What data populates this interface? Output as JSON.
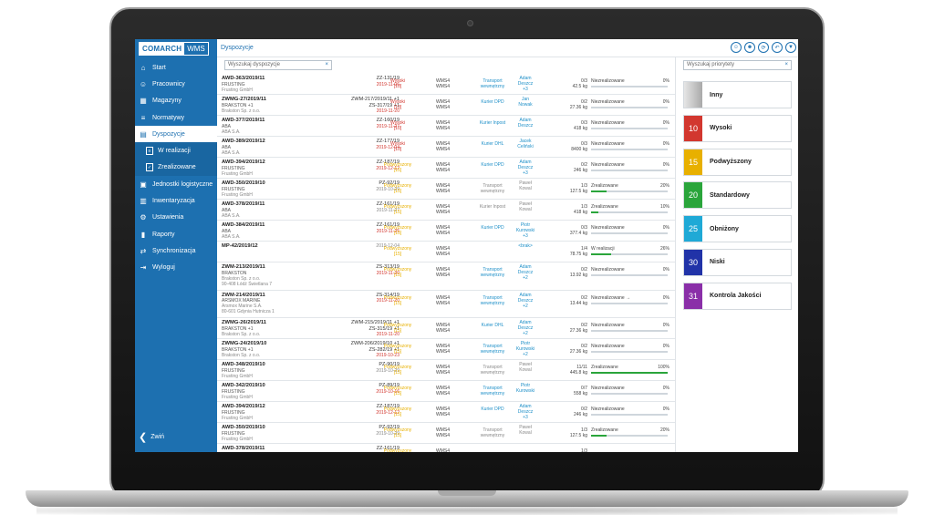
{
  "app": {
    "logo_brand": "COMARCH",
    "logo_product": "WMS",
    "page_title": "Dyspozycje",
    "top_icons": [
      "user-icon",
      "users-icon",
      "refresh-icon",
      "undo-icon",
      "filter-icon"
    ]
  },
  "sidebar": {
    "items": [
      {
        "label": "Start",
        "icon": "home-icon"
      },
      {
        "label": "Pracownicy",
        "icon": "people-icon"
      },
      {
        "label": "Magazyny",
        "icon": "warehouse-icon"
      },
      {
        "label": "Normatywy",
        "icon": "norms-icon"
      },
      {
        "label": "Dyspozycje",
        "icon": "document-icon"
      },
      {
        "label": "W realizacji",
        "icon": "doc-in-progress-icon"
      },
      {
        "label": "Zrealizowane",
        "icon": "doc-done-icon"
      },
      {
        "label": "Jednostki logistyczne",
        "icon": "logistics-icon"
      },
      {
        "label": "Inwentaryzacja",
        "icon": "inventory-icon"
      },
      {
        "label": "Ustawienia",
        "icon": "gear-icon"
      },
      {
        "label": "Raporty",
        "icon": "chart-icon"
      },
      {
        "label": "Synchronizacja",
        "icon": "sync-icon"
      },
      {
        "label": "Wyloguj",
        "icon": "logout-icon"
      }
    ],
    "collapse_label": "Zwiń"
  },
  "search": {
    "placeholder": "Wyszukaj dyspozycje"
  },
  "priority_search": {
    "placeholder": "Wyszukaj priorytety"
  },
  "colors": {
    "accent": "#1d70b0",
    "high": "#d2372f",
    "elevated": "#e8b000",
    "standard": "#2aa53b",
    "low": "#1fa9d6",
    "lowest": "#2133a8",
    "quality": "#8a2fa8",
    "other": "#b9b9b9"
  },
  "rows": [
    {
      "doc": "AWD-363/2019/11",
      "l2": "FRUSTING",
      "l3": "Frusting GmbH",
      "l4": "",
      "src": "ZZ-131/19",
      "src2": "",
      "date": "2019-11-06",
      "date_red": true,
      "prio": "Wysoki",
      "prio_no": "[10]",
      "prio_color": "#d2372f",
      "wh": "WMS4",
      "wh2": "WMS4",
      "car": "Transport",
      "car2": "wewnętrzny",
      "car_grey": false,
      "per": "Adam",
      "per2": "Deszcz",
      "per3": "+3",
      "per_grey": false,
      "qty": "0/3",
      "qty2": "42.5 kg",
      "status": "Niezrealizowane",
      "pct": "0%",
      "fill": 0
    },
    {
      "doc": "ZWMG-27/2019/11",
      "l2": "BRAKSTON +1",
      "l3": "Brakston Sp. z o.o.",
      "l4": "",
      "src": "ZWM-217/2019/11 +1",
      "src2": "ZS-317/19 +1",
      "date": "2019-11-20",
      "date_red": true,
      "prio": "Wysoki",
      "prio_no": "[10]",
      "prio_color": "#d2372f",
      "wh": "WMS4",
      "wh2": "WMS4",
      "car": "Kurier DPD",
      "car2": "",
      "car_grey": false,
      "per": "Jan",
      "per2": "Nowak",
      "per3": "",
      "per_grey": false,
      "qty": "0/2",
      "qty2": "27.36 kg",
      "status": "Niezrealizowane",
      "pct": "0%",
      "fill": 0
    },
    {
      "doc": "AWD-377/2019/11",
      "l2": "ABA",
      "l3": "ABA S.A.",
      "l4": "",
      "src": "ZZ-160/19",
      "src2": "",
      "date": "2019-11-27",
      "date_red": true,
      "prio": "Wysoki",
      "prio_no": "[10]",
      "prio_color": "#d2372f",
      "wh": "WMS4",
      "wh2": "WMS4",
      "car": "Kurier Inpost",
      "car2": "",
      "car_grey": false,
      "per": "Adam",
      "per2": "Deszcz",
      "per3": "",
      "per_grey": false,
      "qty": "0/3",
      "qty2": "418 kg",
      "status": "Niezrealizowane",
      "pct": "0%",
      "fill": 0
    },
    {
      "doc": "AWD-389/2019/12",
      "l2": "ABA",
      "l3": "ABA S.A.",
      "l4": "",
      "src": "ZZ-177/19",
      "src2": "",
      "date": "2019-12-04",
      "date_red": true,
      "prio": "Wysoki",
      "prio_no": "[10]",
      "prio_color": "#d2372f",
      "wh": "WMS4",
      "wh2": "WMS4",
      "car": "Kurier DHL",
      "car2": "",
      "car_grey": false,
      "per": "Jacek",
      "per2": "Celiński",
      "per3": "",
      "per_grey": false,
      "qty": "0/3",
      "qty2": "8400 kg",
      "status": "Niezrealizowane",
      "pct": "0%",
      "fill": 0
    },
    {
      "doc": "AWD-394/2019/12",
      "l2": "FRUSTING",
      "l3": "Frusting GmbH",
      "l4": "",
      "src": "ZZ-187/19",
      "src2": "",
      "date": "2019-12-12",
      "date_red": true,
      "prio": "Podwyższony",
      "prio_no": "[15]",
      "prio_color": "#e8b000",
      "wh": "WMS4",
      "wh2": "WMS4",
      "car": "Kurier DPD",
      "car2": "",
      "car_grey": false,
      "per": "Adam",
      "per2": "Deszcz",
      "per3": "+3",
      "per_grey": false,
      "qty": "0/2",
      "qty2": "246 kg",
      "status": "Niezrealizowane",
      "pct": "0%",
      "fill": 0
    },
    {
      "doc": "AWD-350/2019/10",
      "l2": "FRUSTING",
      "l3": "Frusting GmbH",
      "l4": "",
      "src": "PZ-92/19",
      "src2": "",
      "date": "2019-10-29",
      "date_red": false,
      "prio": "Podwyższony",
      "prio_no": "[15]",
      "prio_color": "#e8b000",
      "wh": "WMS4",
      "wh2": "WMS4",
      "car": "Transport",
      "car2": "wewnętrzny",
      "car_grey": true,
      "per": "Paweł",
      "per2": "Kowal",
      "per3": "",
      "per_grey": true,
      "qty": "1/3",
      "qty2": "127.5 kg",
      "status": "Zrealizowane",
      "pct": "20%",
      "fill": 20
    },
    {
      "doc": "AWD-378/2019/11",
      "l2": "ABA",
      "l3": "ABA S.A.",
      "l4": "",
      "src": "ZZ-161/19",
      "src2": "",
      "date": "2019-11-27",
      "date_red": false,
      "prio": "Podwyższony",
      "prio_no": "[15]",
      "prio_color": "#e8b000",
      "wh": "WMS4",
      "wh2": "WMS4",
      "car": "Kurier Inpost",
      "car2": "",
      "car_grey": true,
      "per": "Paweł",
      "per2": "Kowal",
      "per3": "",
      "per_grey": true,
      "qty": "1/3",
      "qty2": "418 kg",
      "status": "Zrealizowane",
      "pct": "10%",
      "fill": 10
    },
    {
      "doc": "AWD-384/2019/11",
      "l2": "ABA",
      "l3": "ABA S.A.",
      "l4": "",
      "src": "ZZ-161/19",
      "src2": "",
      "date": "2019-11-25",
      "date_red": true,
      "prio": "Podwyższony",
      "prio_no": "[15]",
      "prio_color": "#e8b000",
      "wh": "WMS4",
      "wh2": "WMS4",
      "car": "Kurier DPD",
      "car2": "",
      "car_grey": false,
      "per": "Piotr",
      "per2": "Kurowski",
      "per3": "+3",
      "per_grey": false,
      "qty": "0/3",
      "qty2": "377.4 kg",
      "status": "Niezrealizowane",
      "pct": "0%",
      "fill": 0
    },
    {
      "doc": "MP-42/2019/12",
      "l2": "",
      "l3": "",
      "l4": "",
      "src": "",
      "src2": "",
      "date": "2019-12-04",
      "date_red": false,
      "prio": "Podwyższony",
      "prio_no": "[15]",
      "prio_color": "#e8b000",
      "wh": "WMS4",
      "wh2": "WMS4",
      "car": "",
      "car2": "",
      "car_grey": false,
      "per": "",
      "per2": "<brak>",
      "per3": "",
      "per_grey": false,
      "qty": "1/4",
      "qty2": "78.75 kg",
      "status": "W realizacji",
      "pct": "26%",
      "fill": 26
    },
    {
      "doc": "ZWM-213/2019/11",
      "l2": "BRAKSTON",
      "l3": "Brakston Sp. z o.o.",
      "l4": "90-408 Łódź Świetlana 7",
      "src": "ZS-313/19",
      "src2": "",
      "date": "2019-11-20",
      "date_red": true,
      "prio": "Podwyższony",
      "prio_no": "[15]",
      "prio_color": "#e8b000",
      "wh": "WMS4",
      "wh2": "WMS4",
      "car": "Transport",
      "car2": "wewnętrzny",
      "car_grey": false,
      "per": "Adam",
      "per2": "Deszcz",
      "per3": "+2",
      "per_grey": false,
      "qty": "0/2",
      "qty2": "13.92 kg",
      "status": "Niezrealizowane",
      "pct": "0%",
      "fill": 0
    },
    {
      "doc": "ZWM-214/2019/11",
      "l2": "ARSMOX MARINE",
      "l3": "Arsmox Marine S.A.",
      "l4": "80-601 Gdynia Hutnicza 1",
      "src": "ZS-314/19",
      "src2": "",
      "date": "2019-11-20",
      "date_red": true,
      "prio": "Podwyższony",
      "prio_no": "[15]",
      "prio_color": "#e8b000",
      "wh": "WMS4",
      "wh2": "WMS4",
      "car": "Transport",
      "car2": "wewnętrzny",
      "car_grey": false,
      "per": "Adam",
      "per2": "Deszcz",
      "per3": "+2",
      "per_grey": false,
      "qty": "0/2",
      "qty2": "13.44 kg",
      "status": "Niezrealizowane →",
      "pct": "0%",
      "fill": 0
    },
    {
      "doc": "ZWMG-26/2019/11",
      "l2": "BRAKSTON +1",
      "l3": "Brakston Sp. z o.o.",
      "l4": "",
      "src": "ZWM-215/2019/11 +1",
      "src2": "ZS-315/19 +1",
      "date": "2019-11-20",
      "date_red": true,
      "prio": "Podwyższony",
      "prio_no": "[15]",
      "prio_color": "#e8b000",
      "wh": "WMS4",
      "wh2": "WMS4",
      "car": "Kurier DHL",
      "car2": "",
      "car_grey": false,
      "per": "Adam",
      "per2": "Deszcz",
      "per3": "+2",
      "per_grey": false,
      "qty": "0/2",
      "qty2": "27.36 kg",
      "status": "Niezrealizowane",
      "pct": "0%",
      "fill": 0
    },
    {
      "doc": "ZWMG-24/2019/10",
      "l2": "BRAKSTON +1",
      "l3": "Brakston Sp. z o.o.",
      "l4": "",
      "src": "ZWM-206/2019/10 +1",
      "src2": "ZS-282/19 +1",
      "date": "2019-10-23",
      "date_red": true,
      "prio": "Podwyższony",
      "prio_no": "[15]",
      "prio_color": "#e8b000",
      "wh": "WMS4",
      "wh2": "WMS4",
      "car": "Transport",
      "car2": "wewnętrzny",
      "car_grey": false,
      "per": "Piotr",
      "per2": "Kurowski",
      "per3": "+2",
      "per_grey": false,
      "qty": "0/2",
      "qty2": "27.36 kg",
      "status": "Niezrealizowane",
      "pct": "0%",
      "fill": 0
    },
    {
      "doc": "AWD-348/2019/10",
      "l2": "FRUSTING",
      "l3": "Frusting GmbH",
      "l4": "",
      "src": "PZ-90/19",
      "src2": "",
      "date": "2019-10-29",
      "date_red": false,
      "prio": "Podwyższony",
      "prio_no": "[15]",
      "prio_color": "#e8b000",
      "wh": "WMS4",
      "wh2": "WMS4",
      "car": "Transport",
      "car2": "wewnętrzny",
      "car_grey": true,
      "per": "Paweł",
      "per2": "Kowal",
      "per3": "",
      "per_grey": true,
      "qty": "11/11",
      "qty2": "445.8 kg",
      "status": "Zrealizowane",
      "pct": "100%",
      "fill": 100
    },
    {
      "doc": "AWD-342/2019/10",
      "l2": "FRUSTING",
      "l3": "Frusting GmbH",
      "l4": "",
      "src": "PZ-89/19",
      "src2": "",
      "date": "2019-10-16",
      "date_red": true,
      "prio": "Podwyższony",
      "prio_no": "[15]",
      "prio_color": "#e8b000",
      "wh": "WMS4",
      "wh2": "WMS4",
      "car": "Transport",
      "car2": "wewnętrzny",
      "car_grey": false,
      "per": "Piotr",
      "per2": "Kurowski",
      "per3": "",
      "per_grey": false,
      "qty": "0/7",
      "qty2": "558 kg",
      "status": "Niezrealizowane",
      "pct": "0%",
      "fill": 0
    },
    {
      "doc": "AWD-394/2019/12",
      "l2": "FRUSTING",
      "l3": "Frusting GmbH",
      "l4": "",
      "src": "ZZ-187/19",
      "src2": "",
      "date": "2019-12-12",
      "date_red": true,
      "prio": "Podwyższony",
      "prio_no": "[15]",
      "prio_color": "#e8b000",
      "wh": "WMS4",
      "wh2": "WMS4",
      "car": "Kurier DPD",
      "car2": "",
      "car_grey": false,
      "per": "Adam",
      "per2": "Deszcz",
      "per3": "+3",
      "per_grey": false,
      "qty": "0/2",
      "qty2": "246 kg",
      "status": "Niezrealizowane",
      "pct": "0%",
      "fill": 0
    },
    {
      "doc": "AWD-350/2019/10",
      "l2": "FRUSTING",
      "l3": "Frusting GmbH",
      "l4": "",
      "src": "PZ-92/19",
      "src2": "",
      "date": "2019-10-29",
      "date_red": false,
      "prio": "Podwyższony",
      "prio_no": "[15]",
      "prio_color": "#e8b000",
      "wh": "WMS4",
      "wh2": "WMS4",
      "car": "Transport",
      "car2": "wewnętrzny",
      "car_grey": true,
      "per": "Paweł",
      "per2": "Kowal",
      "per3": "",
      "per_grey": true,
      "qty": "1/3",
      "qty2": "127.5 kg",
      "status": "Zrealizowane",
      "pct": "20%",
      "fill": 20
    },
    {
      "doc": "AWD-378/2019/11",
      "l2": "",
      "l3": "",
      "l4": "",
      "src": "ZZ-161/19",
      "src2": "",
      "date": "",
      "date_red": false,
      "prio": "Podwyższony",
      "prio_no": "",
      "prio_color": "#e8b000",
      "wh": "WMS4",
      "wh2": "",
      "car": "",
      "car2": "",
      "car_grey": false,
      "per": "",
      "per2": "",
      "per3": "",
      "per_grey": false,
      "qty": "1/3",
      "qty2": "",
      "status": "",
      "pct": "",
      "fill": 0
    }
  ],
  "priorities": [
    {
      "number": "",
      "name": "Inny",
      "color": "#b9b9b9"
    },
    {
      "number": "10",
      "name": "Wysoki",
      "color": "#d2372f"
    },
    {
      "number": "15",
      "name": "Podwyższony",
      "color": "#e8b000"
    },
    {
      "number": "20",
      "name": "Standardowy",
      "color": "#2aa53b"
    },
    {
      "number": "25",
      "name": "Obniżony",
      "color": "#1fa9d6"
    },
    {
      "number": "30",
      "name": "Niski",
      "color": "#2133a8"
    },
    {
      "number": "31",
      "name": "Kontrola Jakości",
      "color": "#8a2fa8"
    }
  ]
}
